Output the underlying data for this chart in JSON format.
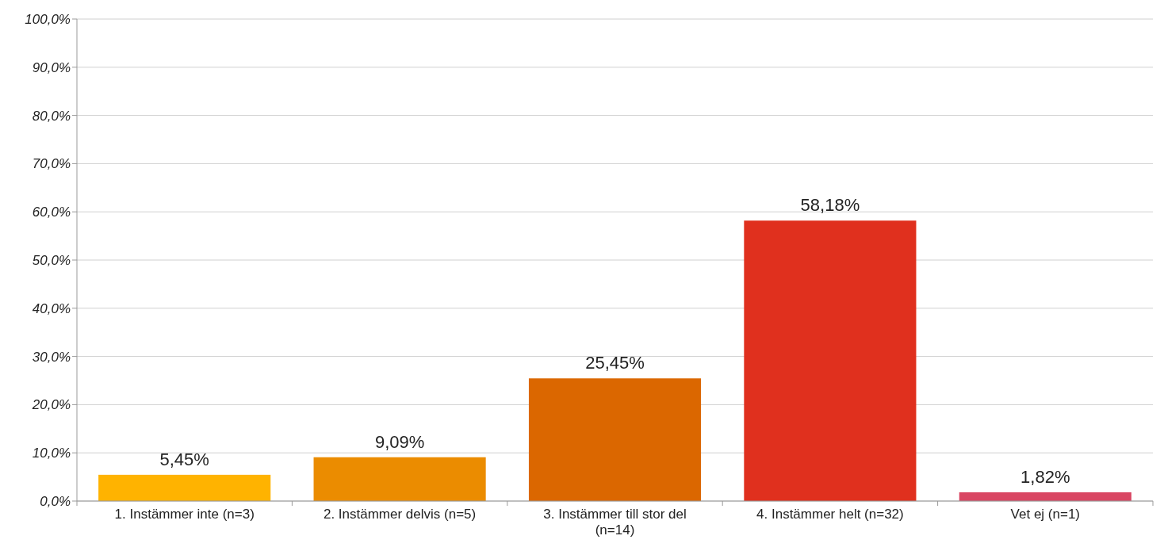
{
  "chart_data": {
    "type": "bar",
    "categories": [
      "1. Instämmer inte (n=3)",
      "2. Instämmer delvis (n=5)",
      "3. Instämmer till stor del (n=14)",
      "4. Instämmer helt (n=32)",
      "Vet ej (n=1)"
    ],
    "values": [
      5.45,
      9.09,
      25.45,
      58.18,
      1.82
    ],
    "value_labels": [
      "5,45%",
      "9,09%",
      "25,45%",
      "58,18%",
      "1,82%"
    ],
    "colors": [
      "#ffb300",
      "#eb8c00",
      "#db6700",
      "#e0301e",
      "#d94663"
    ],
    "ylim": [
      0,
      100
    ],
    "yticks": [
      {
        "value": 0,
        "label": "0,0%"
      },
      {
        "value": 10,
        "label": "10,0%"
      },
      {
        "value": 20,
        "label": "20,0%"
      },
      {
        "value": 30,
        "label": "30,0%"
      },
      {
        "value": 40,
        "label": "40,0%"
      },
      {
        "value": 50,
        "label": "50,0%"
      },
      {
        "value": 60,
        "label": "60,0%"
      },
      {
        "value": 70,
        "label": "70,0%"
      },
      {
        "value": 80,
        "label": "80,0%"
      },
      {
        "value": 90,
        "label": "90,0%"
      },
      {
        "value": 100,
        "label": "100,0%"
      }
    ],
    "grid": "y"
  }
}
